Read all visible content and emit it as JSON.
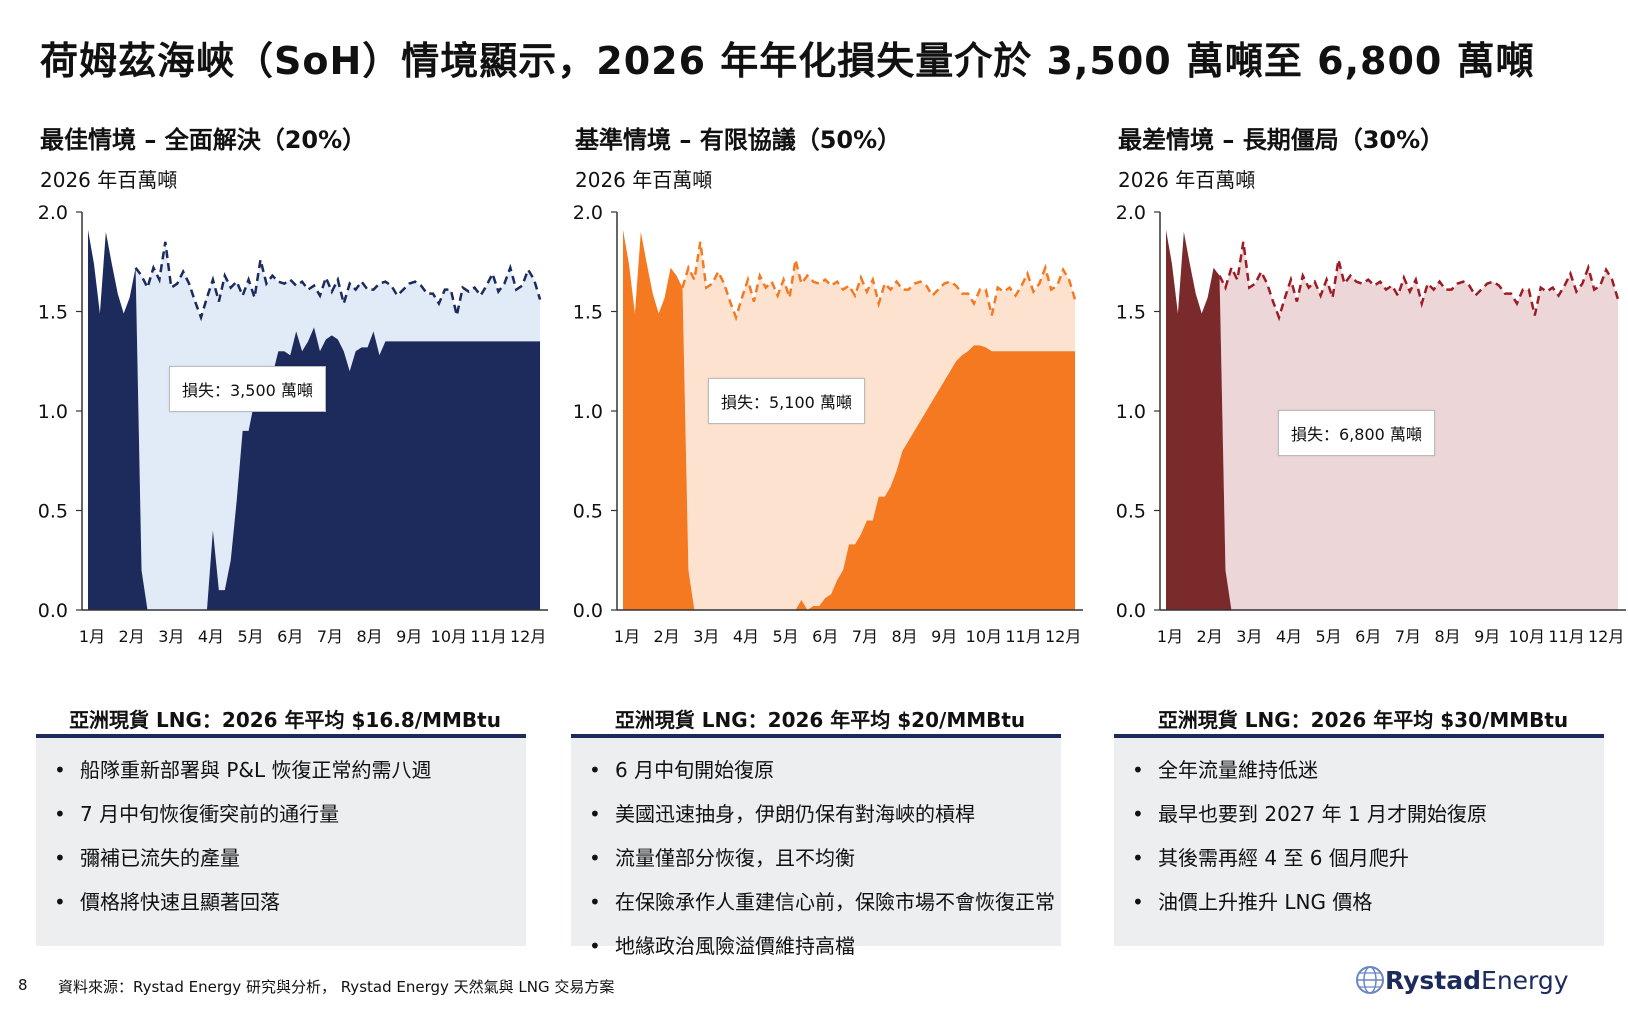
{
  "title": "荷姆茲海峽（SoH）情境顯示，2026 年年化損失量介於 3,500 萬噸至 6,800 萬噸",
  "chart_data": [
    {
      "type": "area",
      "title": "最佳情境 – 全面解決（20%）",
      "ylabel": "2026 年百萬噸",
      "ylim": [
        0,
        2.0
      ],
      "yticks": [
        "2.0",
        "1.5",
        "1.0",
        "0.5",
        "0.0"
      ],
      "categories": [
        "1月",
        "2月",
        "3月",
        "4月",
        "5月",
        "6月",
        "7月",
        "8月",
        "9月",
        "10月",
        "11月",
        "12月"
      ],
      "annotation": "損失：3,500 萬噸",
      "colors": {
        "actual": "#1c2a5c",
        "gap": "#e1eaf7",
        "baseline": "#1c2a5c"
      },
      "x": [
        0.0,
        0.15,
        0.3,
        0.45,
        0.6,
        0.75,
        0.9,
        1.05,
        1.2,
        1.35,
        1.5,
        1.65,
        1.8,
        1.95,
        2.1,
        2.25,
        2.4,
        2.55,
        2.7,
        2.85,
        3.0,
        3.15,
        3.3,
        3.45,
        3.6,
        3.75,
        3.9,
        4.05,
        4.2,
        4.35,
        4.5,
        4.65,
        4.8,
        4.95,
        5.1,
        5.25,
        5.4,
        5.55,
        5.7,
        5.85,
        6.0,
        6.15,
        6.3,
        6.45,
        6.6,
        6.75,
        6.9,
        7.05,
        7.2,
        7.35,
        7.5,
        7.65,
        7.8,
        7.95,
        8.1,
        8.25,
        8.4,
        8.55,
        8.7,
        8.85,
        9.0,
        9.15,
        9.3,
        9.45,
        9.6,
        9.75,
        9.9,
        10.05,
        10.2,
        10.35,
        10.5,
        10.65,
        10.8,
        10.95,
        11.1,
        11.25,
        11.4
      ],
      "baseline": [
        1.91,
        1.74,
        1.49,
        1.9,
        1.74,
        1.59,
        1.49,
        1.57,
        1.72,
        1.68,
        1.62,
        1.72,
        1.66,
        1.85,
        1.62,
        1.64,
        1.7,
        1.64,
        1.55,
        1.47,
        1.57,
        1.66,
        1.55,
        1.68,
        1.62,
        1.65,
        1.58,
        1.66,
        1.57,
        1.76,
        1.64,
        1.68,
        1.65,
        1.64,
        1.66,
        1.63,
        1.65,
        1.61,
        1.63,
        1.58,
        1.67,
        1.6,
        1.66,
        1.54,
        1.64,
        1.61,
        1.65,
        1.61,
        1.61,
        1.64,
        1.65,
        1.63,
        1.58,
        1.61,
        1.64,
        1.65,
        1.63,
        1.59,
        1.59,
        1.54,
        1.61,
        1.61,
        1.48,
        1.62,
        1.6,
        1.62,
        1.58,
        1.63,
        1.69,
        1.6,
        1.64,
        1.72,
        1.61,
        1.63,
        1.71,
        1.66,
        1.56
      ],
      "actual": [
        1.91,
        1.74,
        1.49,
        1.9,
        1.74,
        1.59,
        1.49,
        1.57,
        1.72,
        0.2,
        0.0,
        0.0,
        0.0,
        0.0,
        0.0,
        0.0,
        0.0,
        0.0,
        0.0,
        0.0,
        0.0,
        0.4,
        0.1,
        0.1,
        0.25,
        0.55,
        0.9,
        0.9,
        1.05,
        1.2,
        1.2,
        1.18,
        1.3,
        1.3,
        1.28,
        1.4,
        1.3,
        1.35,
        1.42,
        1.3,
        1.36,
        1.38,
        1.36,
        1.3,
        1.2,
        1.3,
        1.32,
        1.32,
        1.4,
        1.28,
        1.35,
        1.35,
        1.35,
        1.35,
        1.35,
        1.35,
        1.35,
        1.35,
        1.35,
        1.35,
        1.35,
        1.35,
        1.35,
        1.35,
        1.35,
        1.35,
        1.35,
        1.35,
        1.35,
        1.35,
        1.35,
        1.35,
        1.35,
        1.35,
        1.35,
        1.35,
        1.35
      ]
    },
    {
      "type": "area",
      "title": "基準情境 – 有限協議（50%）",
      "ylabel": "2026 年百萬噸",
      "ylim": [
        0,
        2.0
      ],
      "yticks": [
        "2.0",
        "1.5",
        "1.0",
        "0.5",
        "0.0"
      ],
      "categories": [
        "1月",
        "2月",
        "3月",
        "4月",
        "5月",
        "6月",
        "7月",
        "8月",
        "9月",
        "10月",
        "11月",
        "12月"
      ],
      "annotation": "損失：5,100 萬噸",
      "colors": {
        "actual": "#f47920",
        "gap": "#fde2d0",
        "baseline": "#f47920"
      },
      "x": [
        0.0,
        0.15,
        0.3,
        0.45,
        0.6,
        0.75,
        0.9,
        1.05,
        1.2,
        1.35,
        1.5,
        1.65,
        1.8,
        1.95,
        2.1,
        2.25,
        2.4,
        2.55,
        2.7,
        2.85,
        3.0,
        3.15,
        3.3,
        3.45,
        3.6,
        3.75,
        3.9,
        4.05,
        4.2,
        4.35,
        4.5,
        4.65,
        4.8,
        4.95,
        5.1,
        5.25,
        5.4,
        5.55,
        5.7,
        5.85,
        6.0,
        6.15,
        6.3,
        6.45,
        6.6,
        6.75,
        6.9,
        7.05,
        7.2,
        7.35,
        7.5,
        7.65,
        7.8,
        7.95,
        8.1,
        8.25,
        8.4,
        8.55,
        8.7,
        8.85,
        9.0,
        9.15,
        9.3,
        9.45,
        9.6,
        9.75,
        9.9,
        10.05,
        10.2,
        10.35,
        10.5,
        10.65,
        10.8,
        10.95,
        11.1,
        11.25,
        11.4
      ],
      "baseline": [
        1.91,
        1.74,
        1.49,
        1.9,
        1.74,
        1.59,
        1.49,
        1.57,
        1.72,
        1.68,
        1.62,
        1.72,
        1.66,
        1.85,
        1.62,
        1.64,
        1.7,
        1.64,
        1.55,
        1.47,
        1.57,
        1.66,
        1.55,
        1.68,
        1.62,
        1.65,
        1.58,
        1.66,
        1.57,
        1.76,
        1.64,
        1.68,
        1.65,
        1.64,
        1.66,
        1.63,
        1.65,
        1.61,
        1.63,
        1.58,
        1.67,
        1.6,
        1.66,
        1.54,
        1.64,
        1.61,
        1.65,
        1.61,
        1.61,
        1.64,
        1.65,
        1.63,
        1.58,
        1.61,
        1.64,
        1.65,
        1.63,
        1.59,
        1.59,
        1.54,
        1.61,
        1.61,
        1.48,
        1.62,
        1.6,
        1.62,
        1.58,
        1.63,
        1.69,
        1.6,
        1.64,
        1.72,
        1.61,
        1.63,
        1.71,
        1.66,
        1.56
      ],
      "actual": [
        1.91,
        1.74,
        1.49,
        1.9,
        1.74,
        1.59,
        1.49,
        1.57,
        1.72,
        1.68,
        1.62,
        0.2,
        0.0,
        0.0,
        0.0,
        0.0,
        0.0,
        0.0,
        0.0,
        0.0,
        0.0,
        0.0,
        0.0,
        0.0,
        0.0,
        0.0,
        0.0,
        0.0,
        0.0,
        0.0,
        0.05,
        0.0,
        0.02,
        0.02,
        0.06,
        0.08,
        0.15,
        0.2,
        0.33,
        0.33,
        0.38,
        0.45,
        0.45,
        0.57,
        0.57,
        0.62,
        0.7,
        0.8,
        0.85,
        0.9,
        0.95,
        1.0,
        1.05,
        1.1,
        1.15,
        1.2,
        1.25,
        1.28,
        1.3,
        1.33,
        1.33,
        1.32,
        1.3,
        1.3,
        1.3,
        1.3,
        1.3,
        1.3,
        1.3,
        1.3,
        1.3,
        1.3,
        1.3,
        1.3,
        1.3,
        1.3,
        1.3
      ]
    },
    {
      "type": "area",
      "title": "最差情境 – 長期僵局（30%）",
      "ylabel": "2026 年百萬噸",
      "ylim": [
        0,
        2.0
      ],
      "yticks": [
        "2.0",
        "1.5",
        "1.0",
        "0.5",
        "0.0"
      ],
      "categories": [
        "1月",
        "2月",
        "3月",
        "4月",
        "5月",
        "6月",
        "7月",
        "8月",
        "9月",
        "10月",
        "11月",
        "12月"
      ],
      "annotation": "損失：6,800 萬噸",
      "colors": {
        "actual": "#7b2a2c",
        "gap": "#ecd6d8",
        "baseline": "#9c1b24"
      },
      "x": [
        0.0,
        0.15,
        0.3,
        0.45,
        0.6,
        0.75,
        0.9,
        1.05,
        1.2,
        1.35,
        1.5,
        1.65,
        1.8,
        1.95,
        2.1,
        2.25,
        2.4,
        2.55,
        2.7,
        2.85,
        3.0,
        3.15,
        3.3,
        3.45,
        3.6,
        3.75,
        3.9,
        4.05,
        4.2,
        4.35,
        4.5,
        4.65,
        4.8,
        4.95,
        5.1,
        5.25,
        5.4,
        5.55,
        5.7,
        5.85,
        6.0,
        6.15,
        6.3,
        6.45,
        6.6,
        6.75,
        6.9,
        7.05,
        7.2,
        7.35,
        7.5,
        7.65,
        7.8,
        7.95,
        8.1,
        8.25,
        8.4,
        8.55,
        8.7,
        8.85,
        9.0,
        9.15,
        9.3,
        9.45,
        9.6,
        9.75,
        9.9,
        10.05,
        10.2,
        10.35,
        10.5,
        10.65,
        10.8,
        10.95,
        11.1,
        11.25,
        11.4
      ],
      "baseline": [
        1.91,
        1.74,
        1.49,
        1.9,
        1.74,
        1.59,
        1.49,
        1.57,
        1.72,
        1.68,
        1.62,
        1.72,
        1.66,
        1.85,
        1.62,
        1.64,
        1.7,
        1.64,
        1.55,
        1.47,
        1.57,
        1.66,
        1.55,
        1.68,
        1.62,
        1.65,
        1.58,
        1.66,
        1.57,
        1.76,
        1.64,
        1.68,
        1.65,
        1.64,
        1.66,
        1.63,
        1.65,
        1.61,
        1.63,
        1.58,
        1.67,
        1.6,
        1.66,
        1.54,
        1.64,
        1.61,
        1.65,
        1.61,
        1.61,
        1.64,
        1.65,
        1.63,
        1.58,
        1.61,
        1.64,
        1.65,
        1.63,
        1.59,
        1.59,
        1.54,
        1.61,
        1.61,
        1.48,
        1.62,
        1.6,
        1.62,
        1.58,
        1.63,
        1.69,
        1.6,
        1.64,
        1.72,
        1.61,
        1.63,
        1.71,
        1.66,
        1.56
      ],
      "actual": [
        1.91,
        1.74,
        1.49,
        1.9,
        1.74,
        1.59,
        1.49,
        1.57,
        1.72,
        1.68,
        0.2,
        0.0,
        0.0,
        0.0,
        0.0,
        0.0,
        0.0,
        0.0,
        0.0,
        0.0,
        0.0,
        0.0,
        0.0,
        0.0,
        0.0,
        0.0,
        0.0,
        0.0,
        0.0,
        0.0,
        0.0,
        0.0,
        0.0,
        0.0,
        0.0,
        0.0,
        0.0,
        0.0,
        0.0,
        0.0,
        0.0,
        0.0,
        0.0,
        0.0,
        0.0,
        0.0,
        0.0,
        0.0,
        0.0,
        0.0,
        0.0,
        0.0,
        0.0,
        0.0,
        0.0,
        0.0,
        0.0,
        0.0,
        0.0,
        0.0,
        0.0,
        0.0,
        0.0,
        0.0,
        0.0,
        0.0,
        0.0,
        0.0,
        0.0,
        0.0,
        0.0,
        0.0,
        0.0,
        0.0,
        0.0,
        0.0,
        0.0
      ]
    }
  ],
  "panels": [
    {
      "price": "亞洲現貨 LNG：2026 年平均 $16.8/MMBtu",
      "bullets": [
        "船隊重新部署與 P&L 恢復正常約需八週",
        "7 月中旬恢復衝突前的通行量",
        "彌補已流失的產量",
        "價格將快速且顯著回落"
      ]
    },
    {
      "price": "亞洲現貨 LNG：2026 年平均 $20/MMBtu",
      "bullets": [
        "6 月中旬開始復原",
        "美國迅速抽身，伊朗仍保有對海峽的槓桿",
        "流量僅部分恢復，且不均衡",
        "在保險承作人重建信心前，保險市場不會恢復正常",
        "地緣政治風險溢價維持高檔"
      ]
    },
    {
      "price": "亞洲現貨 LNG：2026 年平均 $30/MMBtu",
      "bullets": [
        "全年流量維持低迷",
        "最早也要到 2027 年 1 月才開始復原",
        "其後需再經 4 至 6 個月爬升",
        "油價上升推升 LNG 價格"
      ]
    }
  ],
  "footer": {
    "page_number": "8",
    "source": "資料來源：Rystad Energy 研究與分析， Rystad Energy 天然氣與 LNG 交易方案"
  },
  "logo": {
    "part1": "Rystad",
    "part2": "Energy",
    "color": "#1c2a5c",
    "icon": "globe-icon"
  }
}
